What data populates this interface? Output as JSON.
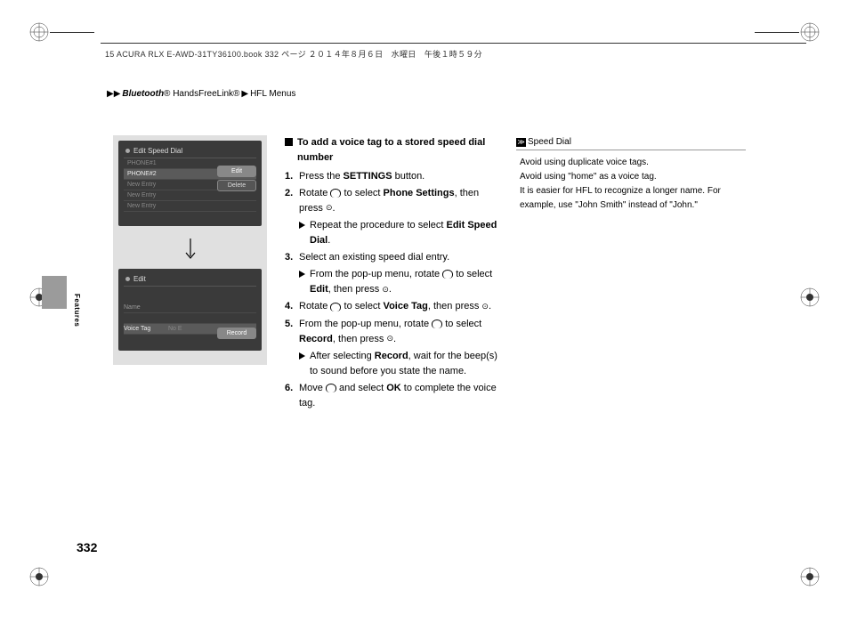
{
  "header": {
    "text": "15 ACURA RLX E-AWD-31TY36100.book  332 ページ  ２０１４年８月６日　水曜日　午後１時５９分"
  },
  "breadcrumb": {
    "part1": "Bluetooth",
    "part2": "® HandsFreeLink®",
    "part3": "HFL Menus"
  },
  "screens": {
    "s1": {
      "title": "Edit Speed Dial",
      "items": [
        "PHONE#1",
        "PHONE#2",
        "New Entry",
        "New Entry",
        "New Entry"
      ],
      "highlight_idx": 1,
      "popup": [
        "Edit",
        "Delete"
      ]
    },
    "s2": {
      "title": "Edit",
      "rows": [
        {
          "label": "Name",
          "val": ""
        },
        {
          "label": "Voice Tag",
          "val": "No E"
        }
      ],
      "popup": [
        "Record"
      ]
    }
  },
  "steps": {
    "heading": "To add a voice tag to a stored speed dial number",
    "items": [
      {
        "num": "1.",
        "txt_pre": "Press the ",
        "bold": "SETTINGS",
        "txt_post": " button."
      },
      {
        "num": "2.",
        "txt_pre": "Rotate ",
        "icon1": true,
        "txt_mid": " to select ",
        "bold": "Phone Settings",
        "txt_post": ", then press ",
        "icon2": true,
        "txt_end": "."
      },
      {
        "sub": true,
        "txt_pre": "Repeat the procedure to select ",
        "bold": "Edit Speed Dial",
        "txt_post": "."
      },
      {
        "num": "3.",
        "txt_pre": "Select an existing speed dial entry."
      },
      {
        "sub": true,
        "txt_pre": "From the pop-up menu, rotate ",
        "icon1": true,
        "txt_mid": " to select ",
        "bold": "Edit",
        "txt_post": ", then press ",
        "icon2": true,
        "txt_end": "."
      },
      {
        "num": "4.",
        "txt_pre": "Rotate ",
        "icon1": true,
        "txt_mid": " to select ",
        "bold": "Voice Tag",
        "txt_post": ", then press ",
        "icon2": true,
        "txt_end": "."
      },
      {
        "num": "5.",
        "txt_pre": "From the pop-up menu, rotate ",
        "icon1": true,
        "txt_mid": " to select ",
        "bold": "Record",
        "txt_post": ", then press ",
        "icon2": true,
        "txt_end": "."
      },
      {
        "sub": true,
        "txt_pre": "After selecting ",
        "bold": "Record",
        "txt_post": ", wait for the beep(s) to sound before you state the name."
      },
      {
        "num": "6.",
        "txt_pre": "Move ",
        "icon1": true,
        "txt_mid": " and select ",
        "bold": "OK",
        "txt_post": " to complete the voice tag."
      }
    ]
  },
  "sidebar": {
    "title": "Speed Dial",
    "body": "Avoid using duplicate voice tags.\nAvoid using \"home\" as a voice tag.\nIt is easier for HFL to recognize a longer name. For example, use \"John Smith\" instead of \"John.\""
  },
  "tab_label": "Features",
  "page_number": "332"
}
